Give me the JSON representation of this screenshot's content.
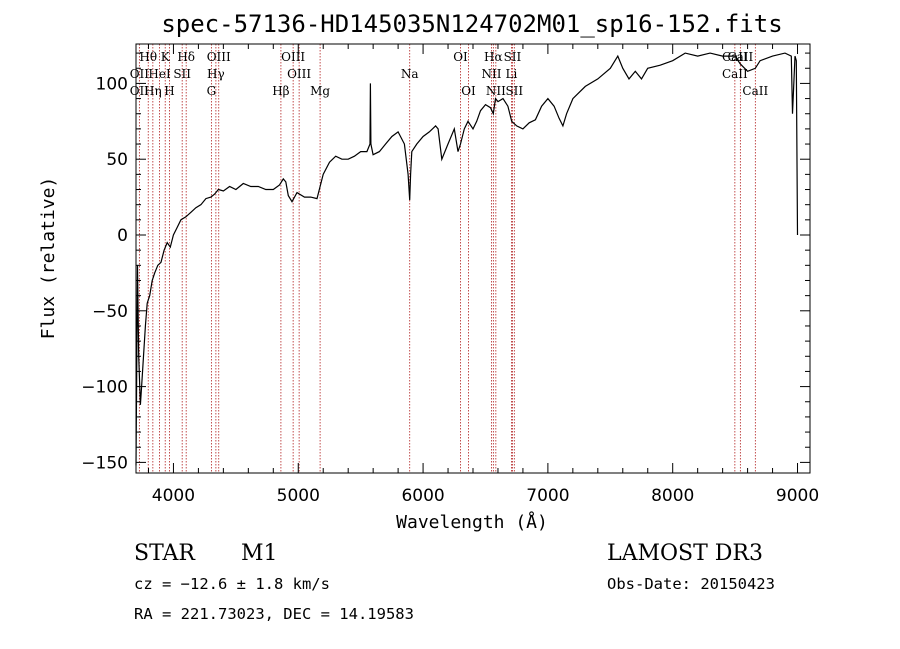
{
  "chart_data": {
    "type": "line",
    "title": "spec-57136-HD145035N124702M01_sp16-152.fits",
    "xlabel": "Wavelength (Å)",
    "ylabel": "Flux (relative)",
    "xlim": [
      3700,
      9100
    ],
    "ylim": [
      -157,
      126
    ],
    "x_ticks": [
      4000,
      5000,
      6000,
      7000,
      8000,
      9000
    ],
    "y_ticks": [
      -150,
      -100,
      -50,
      0,
      50,
      100
    ],
    "grid": false,
    "series": [
      {
        "x": [
          3700,
          3712,
          3722,
          3735,
          3745,
          3760,
          3775,
          3790,
          3810,
          3830,
          3850,
          3875,
          3900,
          3925,
          3950,
          3975,
          4000,
          4030,
          4060,
          4100,
          4140,
          4180,
          4220,
          4260,
          4300,
          4330,
          4360,
          4400,
          4450,
          4500,
          4560,
          4620,
          4680,
          4740,
          4800,
          4850,
          4880,
          4900,
          4920,
          4950,
          4990,
          5050,
          5100,
          5150,
          5200,
          5250,
          5300,
          5350,
          5400,
          5450,
          5500,
          5550,
          5575,
          5578,
          5582,
          5600,
          5650,
          5700,
          5750,
          5800,
          5850,
          5880,
          5893,
          5900,
          5910,
          5950,
          6000,
          6050,
          6100,
          6120,
          6150,
          6200,
          6250,
          6280,
          6300,
          6330,
          6360,
          6400,
          6430,
          6460,
          6500,
          6540,
          6563,
          6580,
          6600,
          6640,
          6680,
          6710,
          6750,
          6800,
          6850,
          6900,
          6950,
          7000,
          7050,
          7090,
          7120,
          7150,
          7200,
          7300,
          7400,
          7500,
          7560,
          7600,
          7650,
          7700,
          7750,
          7800,
          7900,
          8000,
          8100,
          8200,
          8300,
          8400,
          8500,
          8540,
          8600,
          8662,
          8700,
          8800,
          8900,
          8950,
          8960,
          8980,
          8990,
          9000
        ],
        "y": [
          -152,
          -20,
          -80,
          -112,
          -100,
          -80,
          -60,
          -45,
          -40,
          -30,
          -25,
          -20,
          -18,
          -10,
          -5,
          -8,
          0,
          5,
          10,
          12,
          15,
          18,
          20,
          24,
          25,
          27,
          30,
          29,
          32,
          30,
          34,
          32,
          32,
          30,
          30,
          33,
          37,
          35,
          26,
          22,
          28,
          25,
          25,
          24,
          40,
          48,
          52,
          50,
          50,
          52,
          55,
          55,
          60,
          100,
          60,
          53,
          55,
          60,
          65,
          68,
          60,
          40,
          23,
          40,
          55,
          60,
          65,
          68,
          72,
          70,
          50,
          60,
          70,
          55,
          60,
          70,
          75,
          70,
          75,
          82,
          86,
          84,
          80,
          90,
          88,
          90,
          85,
          75,
          72,
          70,
          74,
          76,
          85,
          90,
          85,
          77,
          72,
          80,
          90,
          98,
          103,
          110,
          118,
          110,
          103,
          108,
          103,
          110,
          112,
          115,
          120,
          118,
          120,
          118,
          118,
          113,
          108,
          110,
          115,
          118,
          120,
          118,
          80,
          118,
          115,
          0
        ]
      }
    ],
    "lines": [
      {
        "name": "Hθ",
        "x": 3798,
        "row": 1
      },
      {
        "name": "OII",
        "x": 3727,
        "row": 2
      },
      {
        "name": "OII",
        "x": 3727,
        "row": 3
      },
      {
        "name": "Hη",
        "x": 3835,
        "row": 3
      },
      {
        "name": "K",
        "x": 3934,
        "row": 1
      },
      {
        "name": "HeI",
        "x": 3889,
        "row": 2
      },
      {
        "name": "SII",
        "x": 4070,
        "row": 2
      },
      {
        "name": "Hδ",
        "x": 4102,
        "row": 1
      },
      {
        "name": "H",
        "x": 3968,
        "row": 3
      },
      {
        "name": "OIII",
        "x": 4363,
        "row": 1
      },
      {
        "name": "Hγ",
        "x": 4340,
        "row": 2
      },
      {
        "name": "G",
        "x": 4304,
        "row": 3
      },
      {
        "name": "Hβ",
        "x": 4861,
        "row": 3
      },
      {
        "name": "OIII",
        "x": 4959,
        "row": 1
      },
      {
        "name": "OIII",
        "x": 5007,
        "row": 2
      },
      {
        "name": "Mg",
        "x": 5175,
        "row": 3
      },
      {
        "name": "Na",
        "x": 5893,
        "row": 2
      },
      {
        "name": "OI",
        "x": 6300,
        "row": 1
      },
      {
        "name": "OI",
        "x": 6364,
        "row": 3
      },
      {
        "name": "Hα",
        "x": 6563,
        "row": 1
      },
      {
        "name": "NII",
        "x": 6548,
        "row": 2
      },
      {
        "name": "NII",
        "x": 6583,
        "row": 3
      },
      {
        "name": "SII",
        "x": 6716,
        "row": 1
      },
      {
        "name": "Li",
        "x": 6708,
        "row": 2
      },
      {
        "name": "SII",
        "x": 6731,
        "row": 3
      },
      {
        "name": "CaII",
        "x": 8498,
        "row": 1
      },
      {
        "name": "CaII",
        "x": 8542,
        "row": 1
      },
      {
        "name": "CaII",
        "x": 8498,
        "row": 2
      },
      {
        "name": "CaII",
        "x": 8662,
        "row": 3
      }
    ],
    "line_color": "#b22222"
  },
  "info": {
    "class": "STAR",
    "subclass": "M1",
    "survey": "LAMOST DR3",
    "cz": "cz = −12.6 ± 1.8 km/s",
    "obs_date": "Obs-Date: 20150423",
    "radec": "RA = 221.73023, DEC =  14.19583"
  }
}
